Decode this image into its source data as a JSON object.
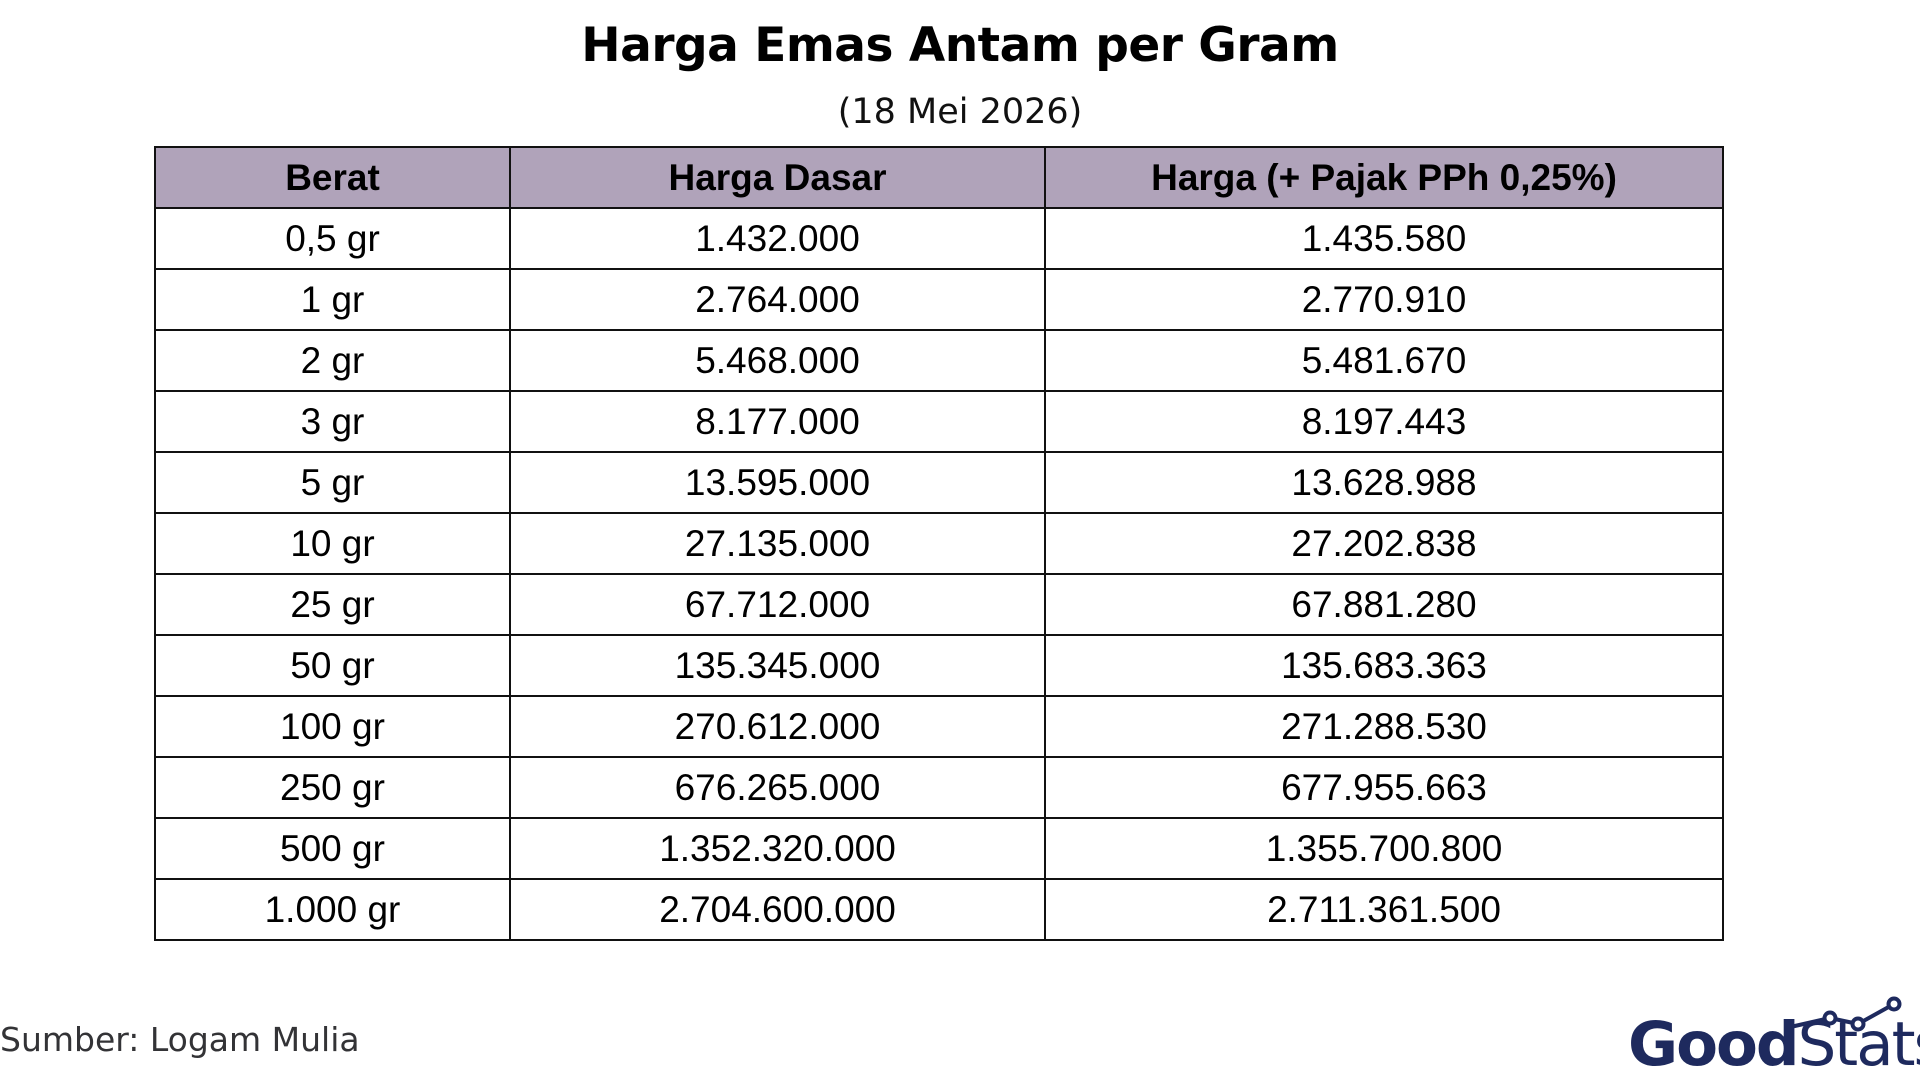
{
  "title": "Harga Emas Antam per Gram",
  "subtitle": "(18 Mei 2026)",
  "table": {
    "headers": [
      "Berat",
      "Harga Dasar",
      "Harga (+ Pajak PPh 0,25%)"
    ],
    "rows": [
      [
        "0,5 gr",
        "1.432.000",
        "1.435.580"
      ],
      [
        "1 gr",
        "2.764.000",
        "2.770.910"
      ],
      [
        "2 gr",
        "5.468.000",
        "5.481.670"
      ],
      [
        "3 gr",
        "8.177.000",
        "8.197.443"
      ],
      [
        "5 gr",
        "13.595.000",
        "13.628.988"
      ],
      [
        "10 gr",
        "27.135.000",
        "27.202.838"
      ],
      [
        "25 gr",
        "67.712.000",
        "67.881.280"
      ],
      [
        "50 gr",
        "135.345.000",
        "135.683.363"
      ],
      [
        "100 gr",
        "270.612.000",
        "271.288.530"
      ],
      [
        "250 gr",
        "676.265.000",
        "677.955.663"
      ],
      [
        "500 gr",
        "1.352.320.000",
        "1.355.700.800"
      ],
      [
        "1.000 gr",
        "2.704.600.000",
        "2.711.361.500"
      ]
    ]
  },
  "chart_data": {
    "type": "table",
    "title": "Harga Emas Antam per Gram",
    "subtitle": "(18 Mei 2026)",
    "columns": [
      "Berat",
      "Harga Dasar",
      "Harga (+ Pajak PPh 0,25%)"
    ],
    "rows": [
      [
        "0,5 gr",
        "1.432.000",
        "1.435.580"
      ],
      [
        "1 gr",
        "2.764.000",
        "2.770.910"
      ],
      [
        "2 gr",
        "5.468.000",
        "5.481.670"
      ],
      [
        "3 gr",
        "8.177.000",
        "8.197.443"
      ],
      [
        "5 gr",
        "13.595.000",
        "13.628.988"
      ],
      [
        "10 gr",
        "27.135.000",
        "27.202.838"
      ],
      [
        "25 gr",
        "67.712.000",
        "67.881.280"
      ],
      [
        "50 gr",
        "135.345.000",
        "135.683.363"
      ],
      [
        "100 gr",
        "270.612.000",
        "271.288.530"
      ],
      [
        "250 gr",
        "676.265.000",
        "677.955.663"
      ],
      [
        "500 gr",
        "1.352.320.000",
        "1.355.700.800"
      ],
      [
        "1.000 gr",
        "2.704.600.000",
        "2.711.361.500"
      ]
    ]
  },
  "source": "Sumber: Logam Mulia",
  "brand": {
    "part1": "Good",
    "part2": "Stats",
    "color": "#1e2a5e"
  },
  "colors": {
    "header_bg": "#b0a3ba",
    "border": "#111111"
  }
}
